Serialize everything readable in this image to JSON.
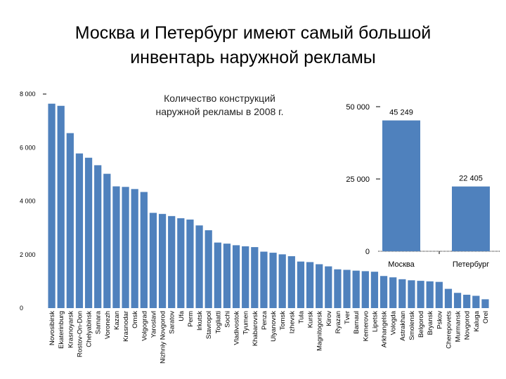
{
  "page": {
    "title_line1": "Москва и Петербург имеют самый большой",
    "title_line2": "инвентарь наружной рекламы"
  },
  "colors": {
    "bar": "#4f81bd",
    "axis": "#000000"
  },
  "chart_data": [
    {
      "type": "bar",
      "title": "Количество конструкций наружной рекламы в 2008 г.",
      "title_line1": "Количество конструкций",
      "title_line2": "наружной рекламы в 2008 г.",
      "ylim": [
        0,
        8000
      ],
      "yticks": [
        "0",
        "2 000",
        "4 000",
        "6 000",
        "8 000"
      ],
      "ytick_values": [
        0,
        2000,
        4000,
        6000,
        8000
      ],
      "categories": [
        "Novosibirsk",
        "Ekaterinburg",
        "Krasnoyarsk",
        "Rostov-On-Don",
        "Chelyabinsk",
        "Samara",
        "Voronezh",
        "Kazan",
        "Krasnodar",
        "Omsk",
        "Volgograd",
        "Yaroslavl",
        "Nizhniy Novgorod",
        "Saratov",
        "Ufa",
        "Perm",
        "Irkutsk",
        "Stavropol",
        "Togliatti",
        "Sochi",
        "Vladivostok",
        "Tyumen",
        "Khabarovsk",
        "Penza",
        "Ulyanovsk",
        "Tomsk",
        "Izhevsk",
        "Tula",
        "Kursk",
        "Magnitogorsk",
        "Kirov",
        "Ryazan",
        "Tver",
        "Barnaul",
        "Kemerovo",
        "Lipetsk",
        "Arkhangelsk",
        "Vologda",
        "Astrakhan",
        "Smolensk",
        "Belgorod",
        "Bryansk",
        "Pskov",
        "Cherepovets",
        "Murmansk",
        "Novgorod",
        "Kaluga",
        "Orel"
      ],
      "values": [
        7640,
        7560,
        6540,
        5780,
        5620,
        5340,
        5020,
        4550,
        4530,
        4450,
        4340,
        3560,
        3520,
        3440,
        3360,
        3310,
        3090,
        2910,
        2450,
        2410,
        2350,
        2310,
        2280,
        2110,
        2070,
        2010,
        1940,
        1740,
        1720,
        1640,
        1560,
        1450,
        1430,
        1400,
        1380,
        1360,
        1200,
        1150,
        1080,
        1040,
        1020,
        1000,
        980,
        720,
        570,
        500,
        460,
        330
      ]
    },
    {
      "type": "bar",
      "categories": [
        "Москва",
        "Петербург"
      ],
      "values": [
        45249,
        22405
      ],
      "value_labels": [
        "45 249",
        "22 405"
      ],
      "ylim": [
        0,
        50000
      ],
      "yticks": [
        "0",
        "25 000",
        "50 000"
      ],
      "ytick_values": [
        0,
        25000,
        50000
      ]
    }
  ]
}
